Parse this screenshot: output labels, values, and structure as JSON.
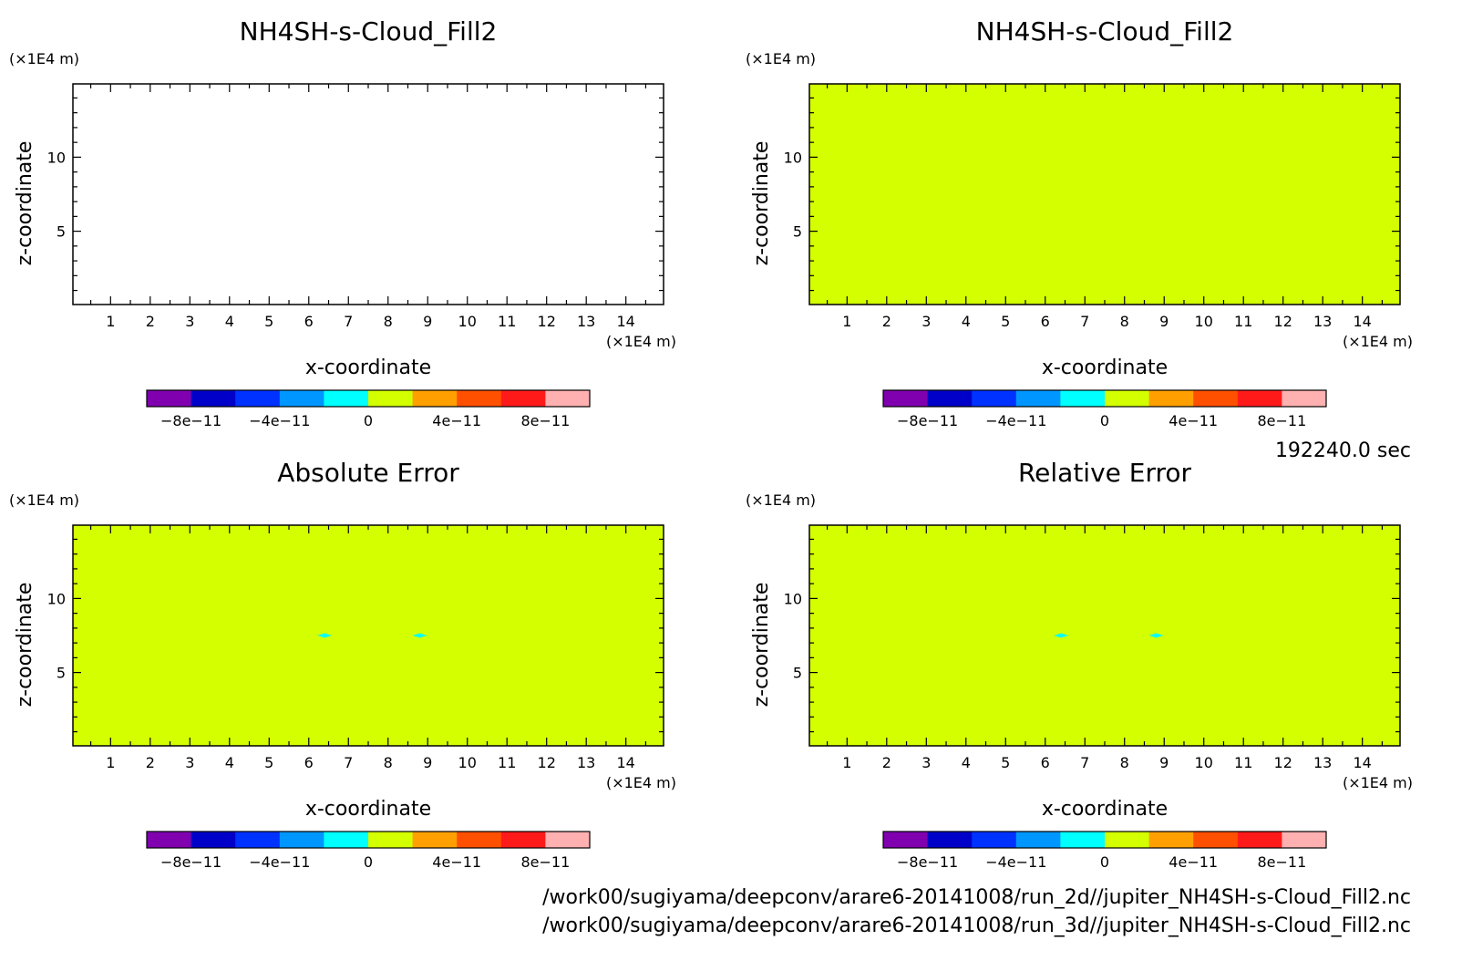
{
  "footer": {
    "time": "192240.0 sec",
    "path_2d": "/work00/sugiyama/deepconv/arare6-20141008/run_2d//jupiter_NH4SH-s-Cloud_Fill2.nc",
    "path_3d": "/work00/sugiyama/deepconv/arare6-20141008/run_3d//jupiter_NH4SH-s-Cloud_Fill2.nc"
  },
  "chart_data": [
    {
      "type": "heatmap",
      "title": "NH4SH-s-Cloud_Fill2",
      "xlabel": "x-coordinate",
      "ylabel": "z-coordinate",
      "x_unit": "(×1E4 m)",
      "y_unit": "(×1E4 m)",
      "xlim": [
        0.05,
        14.95
      ],
      "ylim": [
        0.05,
        14.95
      ],
      "x_ticks": [
        1,
        2,
        3,
        4,
        5,
        6,
        7,
        8,
        9,
        10,
        11,
        12,
        13,
        14
      ],
      "y_ticks": [
        5,
        10
      ],
      "field": "blank",
      "fill_color": "#ffffff",
      "anomalies": []
    },
    {
      "type": "heatmap",
      "title": "NH4SH-s-Cloud_Fill2",
      "xlabel": "x-coordinate",
      "ylabel": "z-coordinate",
      "x_unit": "(×1E4 m)",
      "y_unit": "(×1E4 m)",
      "xlim": [
        0.05,
        14.95
      ],
      "ylim": [
        0.05,
        14.95
      ],
      "x_ticks": [
        1,
        2,
        3,
        4,
        5,
        6,
        7,
        8,
        9,
        10,
        11,
        12,
        13,
        14
      ],
      "y_ticks": [
        5,
        10
      ],
      "field": "uniform",
      "fill_color": "#d4ff00",
      "anomalies": []
    },
    {
      "type": "heatmap",
      "title": "Absolute Error",
      "xlabel": "x-coordinate",
      "ylabel": "z-coordinate",
      "x_unit": "(×1E4 m)",
      "y_unit": "(×1E4 m)",
      "xlim": [
        0.05,
        14.95
      ],
      "ylim": [
        0.05,
        14.95
      ],
      "x_ticks": [
        1,
        2,
        3,
        4,
        5,
        6,
        7,
        8,
        9,
        10,
        11,
        12,
        13,
        14
      ],
      "y_ticks": [
        5,
        10
      ],
      "field": "uniform",
      "fill_color": "#d4ff00",
      "anomalies": [
        {
          "x": 6.4,
          "z": 7.5,
          "color": "#00ffff"
        },
        {
          "x": 8.8,
          "z": 7.5,
          "color": "#00ffff"
        }
      ]
    },
    {
      "type": "heatmap",
      "title": "Relative Error",
      "xlabel": "x-coordinate",
      "ylabel": "z-coordinate",
      "x_unit": "(×1E4 m)",
      "y_unit": "(×1E4 m)",
      "xlim": [
        0.05,
        14.95
      ],
      "ylim": [
        0.05,
        14.95
      ],
      "x_ticks": [
        1,
        2,
        3,
        4,
        5,
        6,
        7,
        8,
        9,
        10,
        11,
        12,
        13,
        14
      ],
      "y_ticks": [
        5,
        10
      ],
      "field": "uniform",
      "fill_color": "#d4ff00",
      "anomalies": [
        {
          "x": 6.4,
          "z": 7.5,
          "color": "#00ffff"
        },
        {
          "x": 8.8,
          "z": 7.5,
          "color": "#00ffff"
        }
      ]
    }
  ],
  "colorbar": {
    "range": [
      -1e-10,
      1e-10
    ],
    "colors": [
      "#8000b0",
      "#0000c8",
      "#0032ff",
      "#0096ff",
      "#00ffff",
      "#d4ff00",
      "#ffa000",
      "#ff5000",
      "#ff1a1a",
      "#ffb0b0"
    ],
    "ticks": [
      {
        "value": -8e-11,
        "label": "−8e−11"
      },
      {
        "value": -4e-11,
        "label": "−4e−11"
      },
      {
        "value": 0,
        "label": "0"
      },
      {
        "value": 4e-11,
        "label": "4e−11"
      },
      {
        "value": 8e-11,
        "label": "8e−11"
      }
    ]
  }
}
